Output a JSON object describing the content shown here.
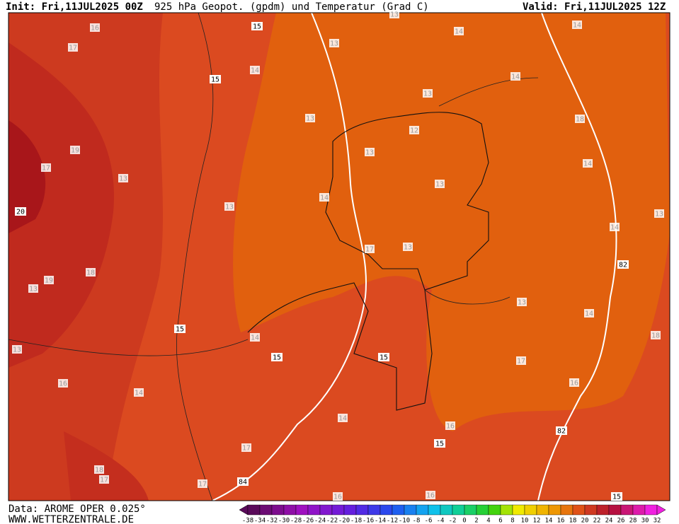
{
  "header": {
    "init": "Init: Fri,11JUL2025 00Z",
    "title": "925 hPa Geopot. (gpdm) und Temperatur (Grad C)",
    "valid": "Valid: Fri,11JUL2025 12Z"
  },
  "footer": {
    "data": "Data: AROME OPER 0.025°",
    "site": "WWW.WETTERZENTRALE.DE"
  },
  "colorbar": {
    "labels": [
      -38,
      -34,
      -32,
      -30,
      -28,
      -26,
      -24,
      -22,
      -20,
      -18,
      -16,
      -14,
      -12,
      -10,
      -8,
      -6,
      -4,
      -2,
      0,
      2,
      4,
      6,
      8,
      10,
      12,
      14,
      16,
      18,
      20,
      22,
      24,
      26,
      28,
      30,
      32
    ]
  },
  "labels": {
    "temperature": [
      16,
      17,
      14,
      13,
      14,
      14,
      13,
      14,
      13,
      13,
      12,
      18,
      19,
      17,
      13,
      13,
      13,
      14,
      13,
      14,
      13,
      14,
      13,
      17,
      18,
      19,
      13,
      13,
      14,
      14,
      18,
      13,
      17,
      16,
      14,
      16,
      14,
      16,
      17,
      18,
      17,
      17,
      16,
      16
    ],
    "geopotential": [
      15,
      15,
      20,
      15,
      15,
      15,
      82,
      82,
      15,
      84,
      15
    ]
  }
}
